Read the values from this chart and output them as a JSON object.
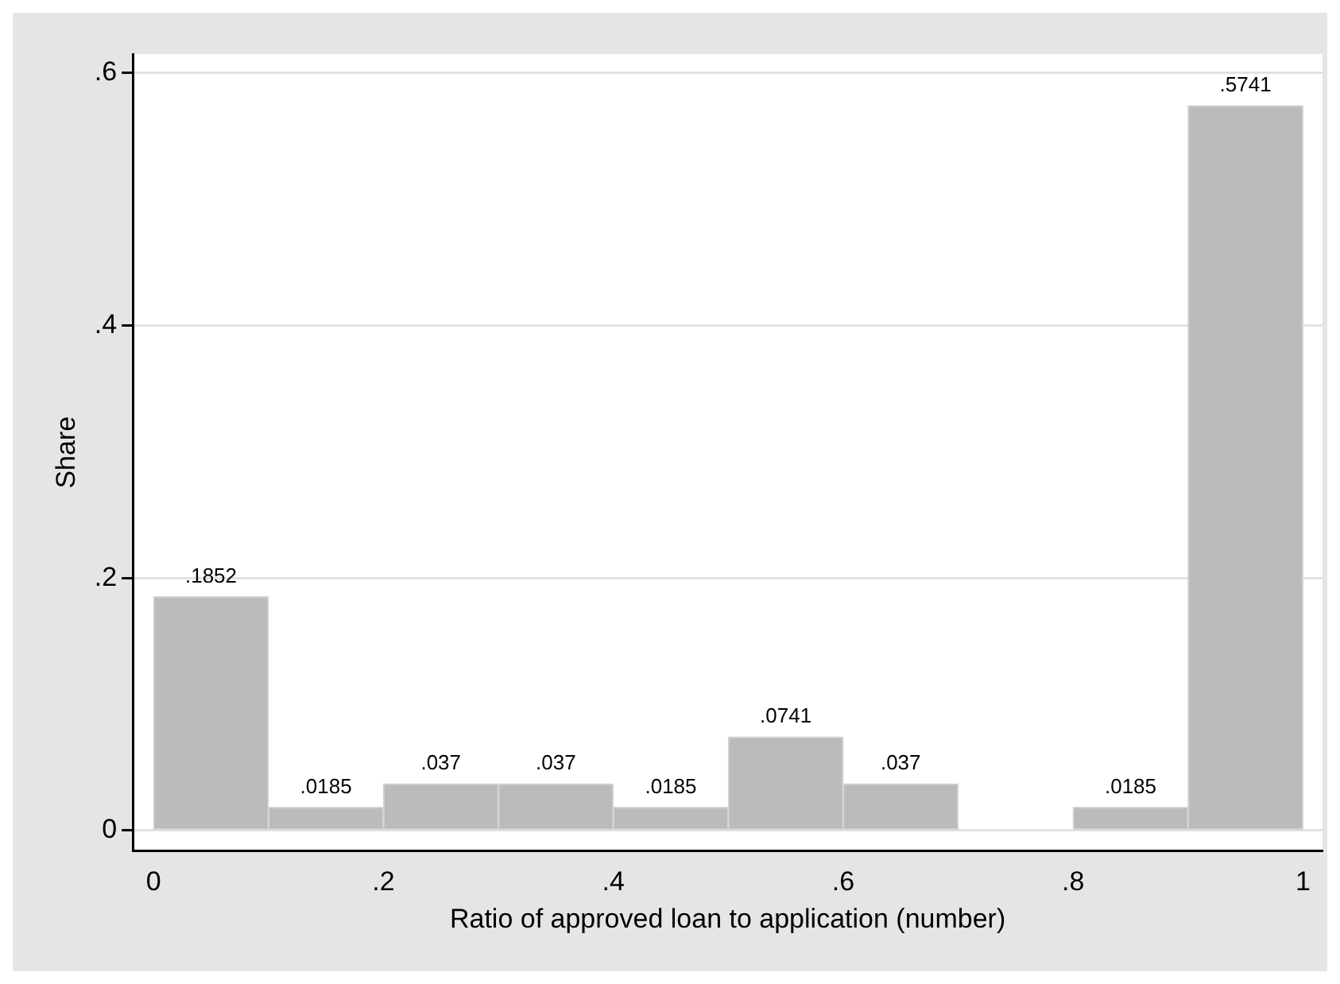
{
  "chart_data": {
    "type": "histogram",
    "xlabel": "Ratio of approved loan to application (number)",
    "ylabel": "Share",
    "bins": [
      0,
      0.1,
      0.2,
      0.3,
      0.4,
      0.5,
      0.6,
      0.7,
      0.8,
      0.9,
      1
    ],
    "values": [
      0.1852,
      0.0185,
      0.037,
      0.037,
      0.0185,
      0.0741,
      0.037,
      0,
      0.0185,
      0.5741
    ],
    "value_labels": [
      ".1852",
      ".0185",
      ".037",
      ".037",
      ".0185",
      ".0741",
      ".037",
      null,
      ".0185",
      ".5741"
    ],
    "color": "#bbbbbb",
    "xlim": [
      -0.018,
      1.017
    ],
    "ylim": [
      -0.016,
      0.615
    ],
    "xticks": [
      0,
      {
        "value": 0.2,
        "label": ".2"
      },
      {
        "value": 0.4,
        "label": ".4"
      },
      {
        "value": 0.6,
        "label": ".6"
      },
      {
        "value": 0.8,
        "label": ".8"
      },
      1
    ],
    "yticks": [
      0,
      {
        "value": 0.2,
        "label": ".2"
      },
      {
        "value": 0.4,
        "label": ".4"
      },
      {
        "value": 0.6,
        "label": ".6"
      }
    ],
    "grid": "y",
    "legend": false
  }
}
